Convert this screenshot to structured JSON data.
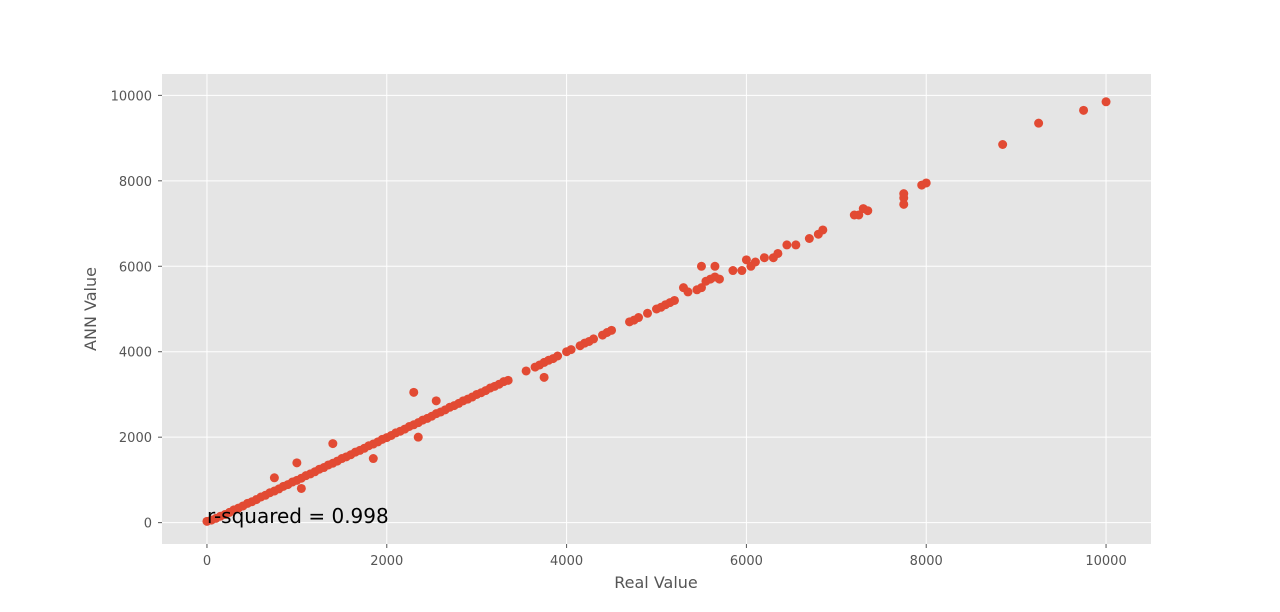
{
  "chart_data": {
    "type": "scatter",
    "title": "",
    "xlabel": "Real Value",
    "ylabel": "ANN Value",
    "xlim": [
      -500,
      10500
    ],
    "ylim": [
      -500,
      10500
    ],
    "xticks": [
      0,
      2000,
      4000,
      6000,
      8000,
      10000
    ],
    "yticks": [
      0,
      2000,
      4000,
      6000,
      8000,
      10000
    ],
    "xtick_labels": [
      "0",
      "2000",
      "4000",
      "6000",
      "8000",
      "10000"
    ],
    "ytick_labels": [
      "0",
      "2000",
      "4000",
      "6000",
      "8000",
      "10000"
    ],
    "annotation": "r-squared = 0.998",
    "grid": true,
    "series_color": "#E24A33",
    "plot_background": "#E5E5E5",
    "grid_color": "#FFFFFF",
    "x": [
      0,
      50,
      100,
      150,
      200,
      250,
      300,
      350,
      400,
      450,
      500,
      550,
      600,
      650,
      700,
      750,
      800,
      850,
      900,
      950,
      1000,
      1050,
      1100,
      1150,
      1200,
      1250,
      1300,
      1350,
      1400,
      1450,
      1500,
      1550,
      1600,
      1650,
      1700,
      1750,
      1800,
      1850,
      1900,
      1950,
      2000,
      2050,
      2100,
      2150,
      2200,
      2250,
      2300,
      2350,
      2400,
      2450,
      2500,
      2550,
      2600,
      2650,
      2700,
      2750,
      2800,
      2850,
      2900,
      2950,
      3000,
      3050,
      3100,
      3150,
      3200,
      3250,
      3300,
      3350,
      3550,
      3650,
      3700,
      3750,
      3800,
      3850,
      3900,
      4000,
      4050,
      4150,
      4200,
      4250,
      4300,
      4400,
      4450,
      4500,
      4700,
      4750,
      4800,
      4900,
      5000,
      5050,
      5100,
      5150,
      5200,
      5300,
      5350,
      5450,
      5500,
      5550,
      5600,
      5650,
      5700,
      5850,
      5950,
      6000,
      6050,
      6100,
      6200,
      6300,
      6350,
      6450,
      6550,
      6700,
      6800,
      6850,
      7200,
      7250,
      7300,
      7350,
      7750,
      7750,
      7950,
      8000,
      8850,
      9250,
      9750,
      10000,
      750,
      1400,
      2300,
      2350,
      1850,
      1050,
      3750,
      5500,
      5650,
      7750,
      2550,
      1000
    ],
    "y": [
      30,
      60,
      100,
      150,
      190,
      240,
      300,
      340,
      390,
      450,
      490,
      540,
      600,
      640,
      700,
      740,
      790,
      850,
      890,
      950,
      990,
      1040,
      1100,
      1140,
      1190,
      1250,
      1290,
      1350,
      1390,
      1440,
      1500,
      1540,
      1590,
      1650,
      1690,
      1740,
      1800,
      1840,
      1890,
      1950,
      1990,
      2040,
      2100,
      2140,
      2190,
      2250,
      2290,
      2340,
      2400,
      2440,
      2490,
      2550,
      2590,
      2640,
      2700,
      2740,
      2790,
      2850,
      2890,
      2940,
      3000,
      3040,
      3090,
      3150,
      3190,
      3240,
      3300,
      3330,
      3550,
      3640,
      3690,
      3750,
      3800,
      3840,
      3900,
      4000,
      4050,
      4140,
      4200,
      4240,
      4300,
      4390,
      4450,
      4500,
      4700,
      4740,
      4800,
      4900,
      5000,
      5040,
      5100,
      5150,
      5200,
      5500,
      5400,
      5450,
      5500,
      5650,
      5700,
      5750,
      5700,
      5900,
      5900,
      6150,
      6000,
      6100,
      6200,
      6200,
      6300,
      6500,
      6500,
      6650,
      6750,
      6850,
      7200,
      7200,
      7350,
      7300,
      7600,
      7450,
      7900,
      7950,
      8850,
      9350,
      9650,
      9850,
      1050,
      1850,
      3050,
      2000,
      1500,
      800,
      3400,
      6000,
      6000,
      7700,
      2850,
      1400
    ]
  }
}
